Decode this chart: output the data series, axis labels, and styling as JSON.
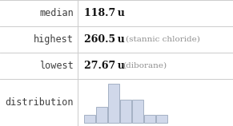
{
  "rows": [
    {
      "label": "median",
      "value": "118.7 u",
      "note": ""
    },
    {
      "label": "highest",
      "value": "260.5 u",
      "note": "(stannic chloride)"
    },
    {
      "label": "lowest",
      "value": "27.67 u",
      "note": "(diborane)"
    },
    {
      "label": "distribution",
      "value": "",
      "note": ""
    }
  ],
  "hist_bars": [
    1,
    2,
    5,
    3,
    3,
    1,
    1
  ],
  "hist_bar_color": "#d0d8ea",
  "hist_bar_edge_color": "#9aa8bc",
  "background_color": "#ffffff",
  "label_color": "#404040",
  "value_color": "#111111",
  "note_color": "#909090",
  "grid_color": "#cccccc",
  "label_fontsize": 8.5,
  "value_fontsize": 9,
  "note_fontsize": 7.5
}
